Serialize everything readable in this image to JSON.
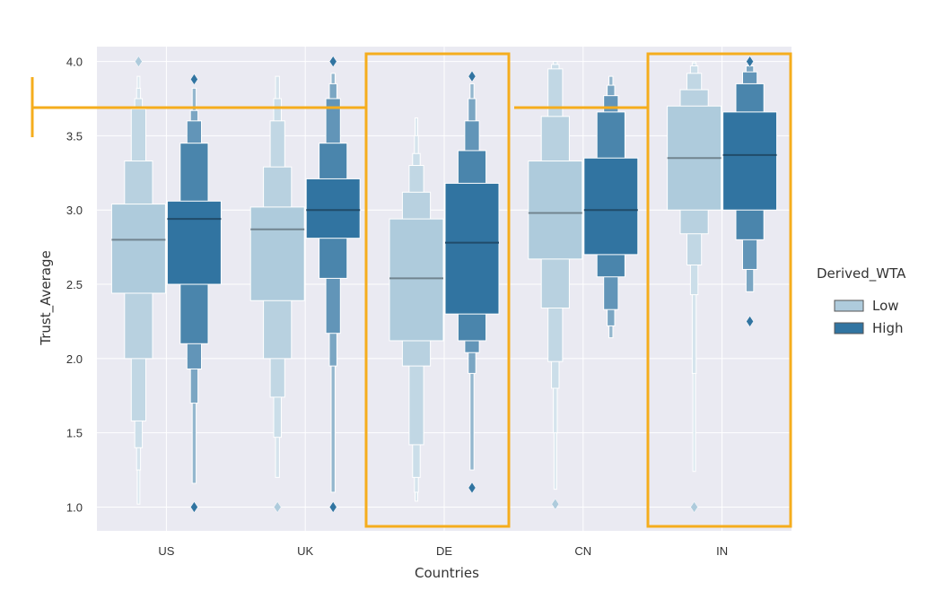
{
  "chart_data": {
    "type": "boxen",
    "xlabel": "Countries",
    "ylabel": "Trust_Average",
    "categories": [
      "US",
      "UK",
      "DE",
      "CN",
      "IN"
    ],
    "ylim": [
      0.84,
      4.1
    ],
    "yticks": [
      "1.0",
      "1.5",
      "2.0",
      "2.5",
      "3.0",
      "3.5",
      "4.0"
    ],
    "grid": true,
    "legend": {
      "title": "Derived_WTA",
      "placement": "right",
      "entries": [
        {
          "name": "Low",
          "color": "#aecbdc"
        },
        {
          "name": "High",
          "color": "#3174a1"
        }
      ]
    },
    "series": [
      {
        "name": "Low",
        "color": "#aecbdc",
        "groups": [
          {
            "category": "US",
            "median": 2.8,
            "levels": [
              [
                2.44,
                3.04
              ],
              [
                2.0,
                3.33
              ],
              [
                1.58,
                3.68
              ],
              [
                1.4,
                3.75
              ],
              [
                1.25,
                3.82
              ],
              [
                1.02,
                3.9
              ]
            ],
            "outliers": [
              4.0
            ]
          },
          {
            "category": "UK",
            "median": 2.87,
            "levels": [
              [
                2.39,
                3.02
              ],
              [
                2.0,
                3.29
              ],
              [
                1.74,
                3.6
              ],
              [
                1.47,
                3.75
              ],
              [
                1.2,
                3.9
              ]
            ],
            "outliers": [
              1.0
            ]
          },
          {
            "category": "DE",
            "median": 2.54,
            "levels": [
              [
                2.12,
                2.94
              ],
              [
                1.95,
                3.12
              ],
              [
                1.42,
                3.3
              ],
              [
                1.2,
                3.38
              ],
              [
                1.1,
                3.5
              ],
              [
                1.04,
                3.62
              ]
            ],
            "outliers": []
          },
          {
            "category": "CN",
            "median": 2.98,
            "levels": [
              [
                2.67,
                3.33
              ],
              [
                2.34,
                3.63
              ],
              [
                1.98,
                3.95
              ],
              [
                1.8,
                3.98
              ],
              [
                1.5,
                4.0
              ],
              [
                1.12,
                4.0
              ]
            ],
            "outliers": [
              1.02
            ]
          },
          {
            "category": "IN",
            "median": 3.35,
            "levels": [
              [
                3.0,
                3.7
              ],
              [
                2.84,
                3.81
              ],
              [
                2.63,
                3.92
              ],
              [
                2.43,
                3.97
              ],
              [
                1.9,
                3.99
              ],
              [
                1.24,
                4.0
              ]
            ],
            "outliers": [
              1.0
            ]
          }
        ]
      },
      {
        "name": "High",
        "color": "#3174a1",
        "groups": [
          {
            "category": "US",
            "median": 2.94,
            "levels": [
              [
                2.5,
                3.06
              ],
              [
                2.1,
                3.45
              ],
              [
                1.93,
                3.6
              ],
              [
                1.7,
                3.67
              ],
              [
                1.16,
                3.82
              ]
            ],
            "outliers": [
              3.88,
              1.0
            ]
          },
          {
            "category": "UK",
            "median": 3.0,
            "levels": [
              [
                2.81,
                3.21
              ],
              [
                2.54,
                3.45
              ],
              [
                2.17,
                3.75
              ],
              [
                1.95,
                3.85
              ],
              [
                1.1,
                3.92
              ]
            ],
            "outliers": [
              4.0,
              1.0
            ]
          },
          {
            "category": "DE",
            "median": 2.78,
            "levels": [
              [
                2.3,
                3.18
              ],
              [
                2.12,
                3.4
              ],
              [
                2.04,
                3.6
              ],
              [
                1.9,
                3.75
              ],
              [
                1.25,
                3.85
              ]
            ],
            "outliers": [
              3.9,
              1.13
            ]
          },
          {
            "category": "CN",
            "median": 3.0,
            "levels": [
              [
                2.7,
                3.35
              ],
              [
                2.55,
                3.66
              ],
              [
                2.33,
                3.77
              ],
              [
                2.22,
                3.84
              ],
              [
                2.14,
                3.9
              ]
            ],
            "outliers": []
          },
          {
            "category": "IN",
            "median": 3.37,
            "levels": [
              [
                3.0,
                3.66
              ],
              [
                2.8,
                3.85
              ],
              [
                2.6,
                3.93
              ],
              [
                2.45,
                3.97
              ]
            ],
            "outliers": [
              4.0,
              2.25
            ]
          }
        ]
      }
    ]
  }
}
